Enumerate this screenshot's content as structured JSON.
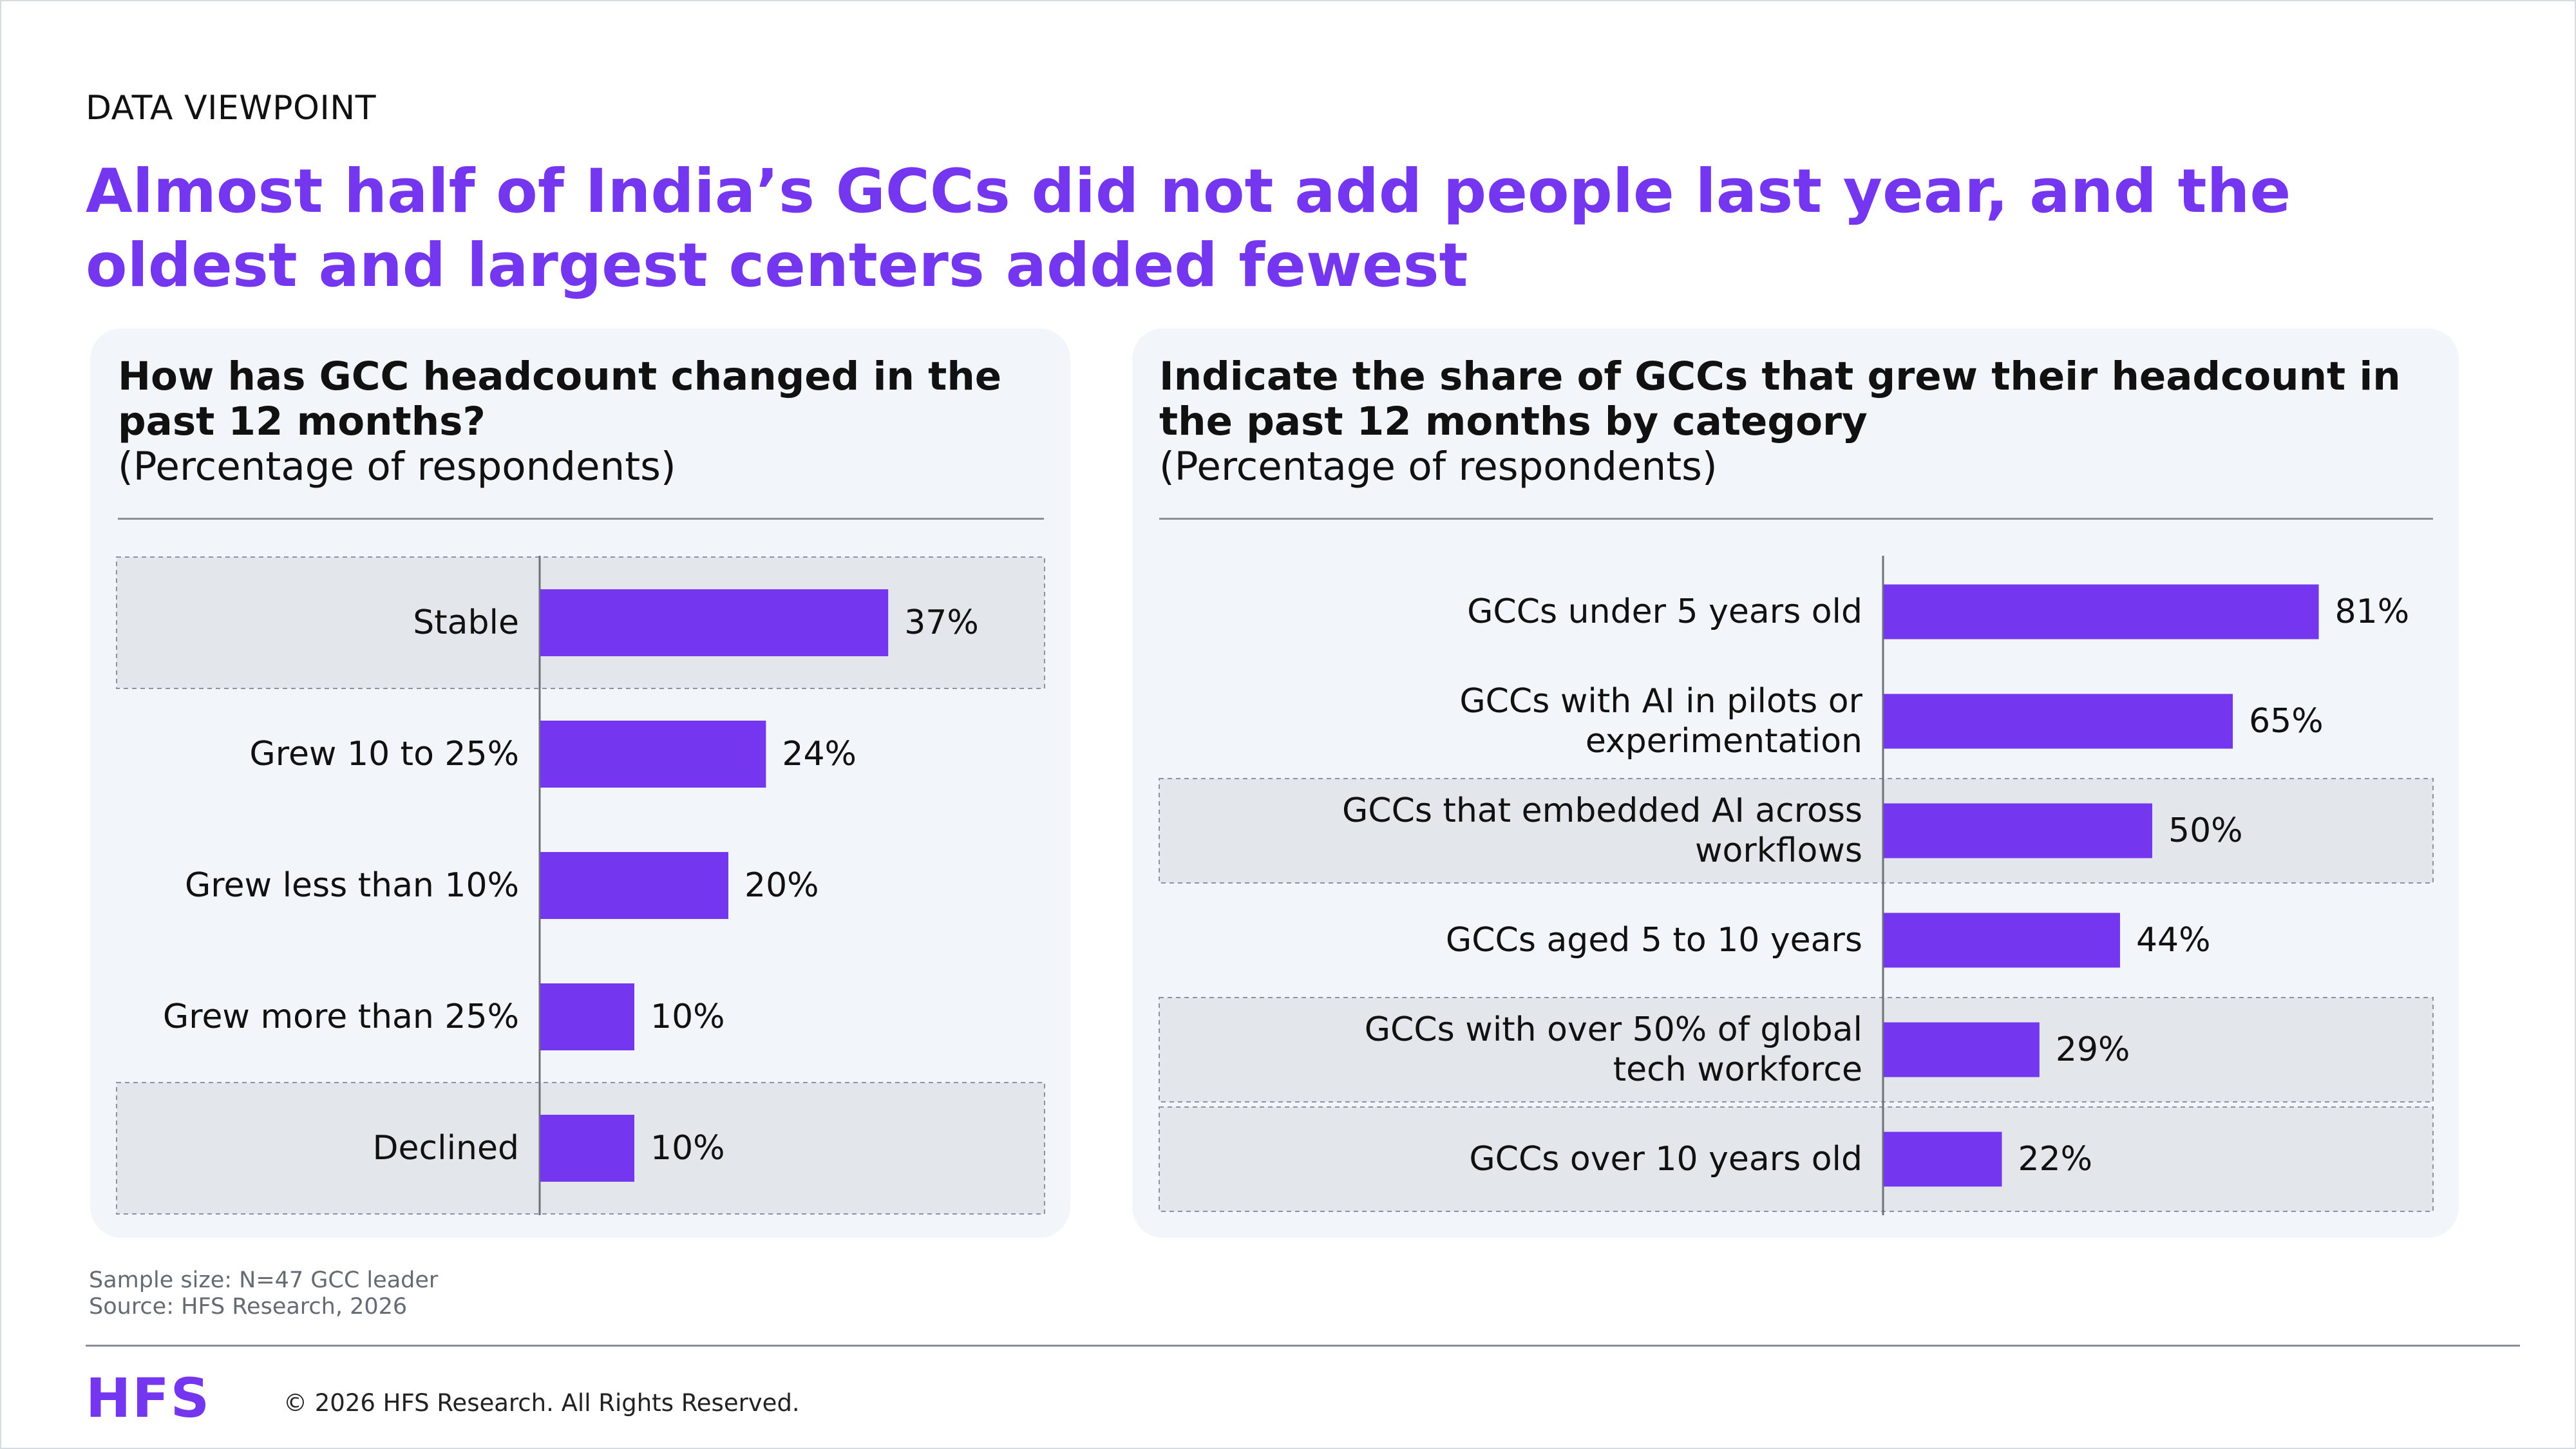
{
  "header": {
    "eyebrow": "DATA VIEWPOINT",
    "title": "Almost half of India’s GCCs did not add people last year, and the oldest and largest centers added fewest"
  },
  "colors": {
    "accent": "#7436ee",
    "panel_bg": "#f2f5f9",
    "highlight_bg": "#e3e6eb"
  },
  "chart_data": [
    {
      "type": "bar",
      "orientation": "horizontal",
      "title": "How has GCC headcount changed in the past 12 months?",
      "subtitle": "(Percentage of respondents)",
      "categories": [
        "Stable",
        "Grew 10 to 25%",
        "Grew less than 10%",
        "Grew more than 25%",
        "Declined"
      ],
      "values": [
        37,
        24,
        20,
        10,
        10
      ],
      "labels": [
        "37%",
        "24%",
        "20%",
        "10%",
        "10%"
      ],
      "highlighted": [
        true,
        false,
        false,
        false,
        true
      ],
      "xlim": [
        0,
        100
      ]
    },
    {
      "type": "bar",
      "orientation": "horizontal",
      "title": "Indicate the share of GCCs that grew their headcount in the past 12 months by category",
      "subtitle": "(Percentage of respondents)",
      "categories": [
        "GCCs under 5 years old",
        "GCCs with AI in pilots or experimentation",
        "GCCs that embedded AI across workflows",
        "GCCs aged 5 to 10 years",
        "GCCs with over 50% of global tech workforce",
        "GCCs over 10 years old"
      ],
      "values": [
        81,
        65,
        50,
        44,
        29,
        22
      ],
      "labels": [
        "81%",
        "65%",
        "50%",
        "44%",
        "29%",
        "22%"
      ],
      "highlighted": [
        false,
        false,
        true,
        false,
        true,
        true
      ],
      "xlim": [
        0,
        100
      ]
    }
  ],
  "footer": {
    "sample": "Sample size: N=47 GCC leader",
    "source": "Source: HFS Research, 2026",
    "logo": "HFS",
    "copyright": "© 2026 HFS Research. All Rights Reserved."
  }
}
